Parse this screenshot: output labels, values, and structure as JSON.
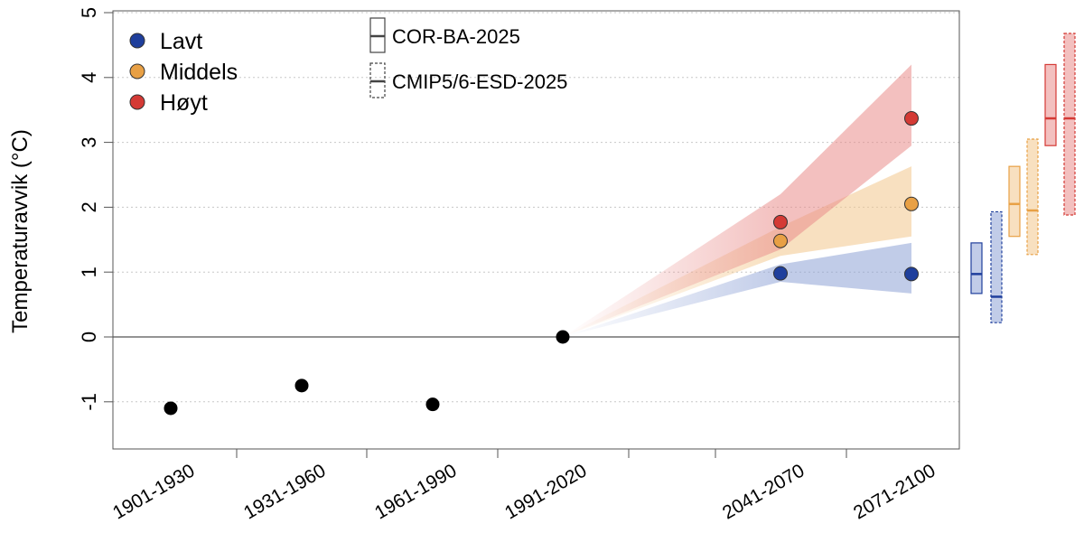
{
  "chart_data": {
    "type": "scatter",
    "title": "",
    "xlabel": "",
    "ylabel": "Temperaturavvik (°C)",
    "ylim": [
      -1.75,
      5
    ],
    "yticks": [
      "-1",
      "0",
      "1",
      "2",
      "3",
      "4",
      "5"
    ],
    "grid": "horizontal dotted",
    "categories": [
      "1901-1930",
      "1931-1960",
      "1961-1990",
      "1991-2020",
      "2041-2070",
      "2071-2100"
    ],
    "observed": {
      "color": "#000000",
      "points": [
        {
          "x": "1901-1930",
          "y": -1.1
        },
        {
          "x": "1931-1960",
          "y": -0.75
        },
        {
          "x": "1961-1990",
          "y": -1.04
        },
        {
          "x": "1991-2020",
          "y": 0.0
        }
      ]
    },
    "series": [
      {
        "name": "Lavt",
        "color": "#1f3f9c",
        "band_color": "#8ea2d6",
        "points": [
          {
            "x": "2041-2070",
            "y": 0.98
          },
          {
            "x": "2071-2100",
            "y": 0.97
          }
        ],
        "band": [
          {
            "x": "2041-2070",
            "lo": 0.85,
            "hi": 1.12
          },
          {
            "x": "2071-2100",
            "lo": 0.67,
            "hi": 1.45
          }
        ],
        "ranges": {
          "COR-BA-2025": {
            "lo": 0.67,
            "hi": 1.45,
            "median": 0.97
          },
          "CMIP5/6-ESD-2025": {
            "lo": 0.22,
            "hi": 1.93,
            "median": 0.62
          }
        }
      },
      {
        "name": "Middels",
        "color": "#e8a045",
        "band_color": "#f3c78c",
        "points": [
          {
            "x": "2041-2070",
            "y": 1.48
          },
          {
            "x": "2071-2100",
            "y": 2.05
          }
        ],
        "band": [
          {
            "x": "2041-2070",
            "lo": 1.25,
            "hi": 1.7
          },
          {
            "x": "2071-2100",
            "lo": 1.55,
            "hi": 2.63
          }
        ],
        "ranges": {
          "COR-BA-2025": {
            "lo": 1.55,
            "hi": 2.63,
            "median": 2.05
          },
          "CMIP5/6-ESD-2025": {
            "lo": 1.27,
            "hi": 3.05,
            "median": 1.95
          }
        }
      },
      {
        "name": "Høyt",
        "color": "#d43a35",
        "band_color": "#e98d8b",
        "points": [
          {
            "x": "2041-2070",
            "y": 1.77
          },
          {
            "x": "2071-2100",
            "y": 3.37
          }
        ],
        "band": [
          {
            "x": "2041-2070",
            "lo": 1.35,
            "hi": 2.2
          },
          {
            "x": "2071-2100",
            "lo": 2.95,
            "hi": 4.2
          }
        ],
        "ranges": {
          "COR-BA-2025": {
            "lo": 2.95,
            "hi": 4.2,
            "median": 3.37
          },
          "CMIP5/6-ESD-2025": {
            "lo": 1.88,
            "hi": 4.68,
            "median": 3.37
          }
        }
      }
    ],
    "range_legend": [
      {
        "name": "COR-BA-2025",
        "style": "solid"
      },
      {
        "name": "CMIP5/6-ESD-2025",
        "style": "dashed"
      }
    ],
    "legend_position": "top-left"
  }
}
